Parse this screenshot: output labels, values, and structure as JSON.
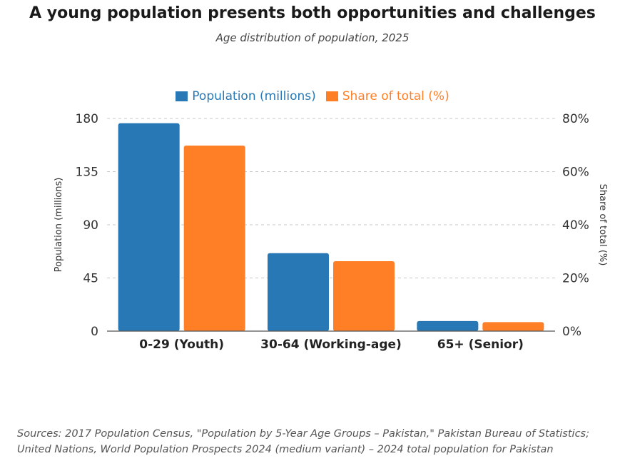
{
  "title": "A young population presents both opportunities and challenges",
  "subtitle": "Age distribution of population, 2025",
  "chart_data": {
    "type": "bar",
    "categories": [
      "0-29 (Youth)",
      "30-64 (Working-age)",
      "65+ (Senior)"
    ],
    "series": [
      {
        "name": "Population (millions)",
        "axis": "left",
        "color": "#2878b5",
        "values": [
          176,
          66,
          8.5
        ]
      },
      {
        "name": "Share of total (%)",
        "axis": "right",
        "color": "#ff7f27",
        "values": [
          69.8,
          26.3,
          3.4
        ]
      }
    ],
    "y_left": {
      "label": "Population (millions)",
      "min": 0,
      "max": 180,
      "ticks": [
        "0",
        "45",
        "90",
        "135",
        "180"
      ]
    },
    "y_right": {
      "label": "Share of total (%)",
      "min": 0,
      "max": 80,
      "ticks": [
        "0%",
        "20%",
        "40%",
        "60%",
        "80%"
      ]
    },
    "grid": true,
    "legend_position": "top-center"
  },
  "sources": [
    "Sources: 2017 Population Census, \"Population by 5-Year Age Groups – Pakistan,\" Pakistan Bureau of Statistics;",
    "United Nations, World Population Prospects 2024 (medium variant) – 2024 total population for Pakistan"
  ]
}
